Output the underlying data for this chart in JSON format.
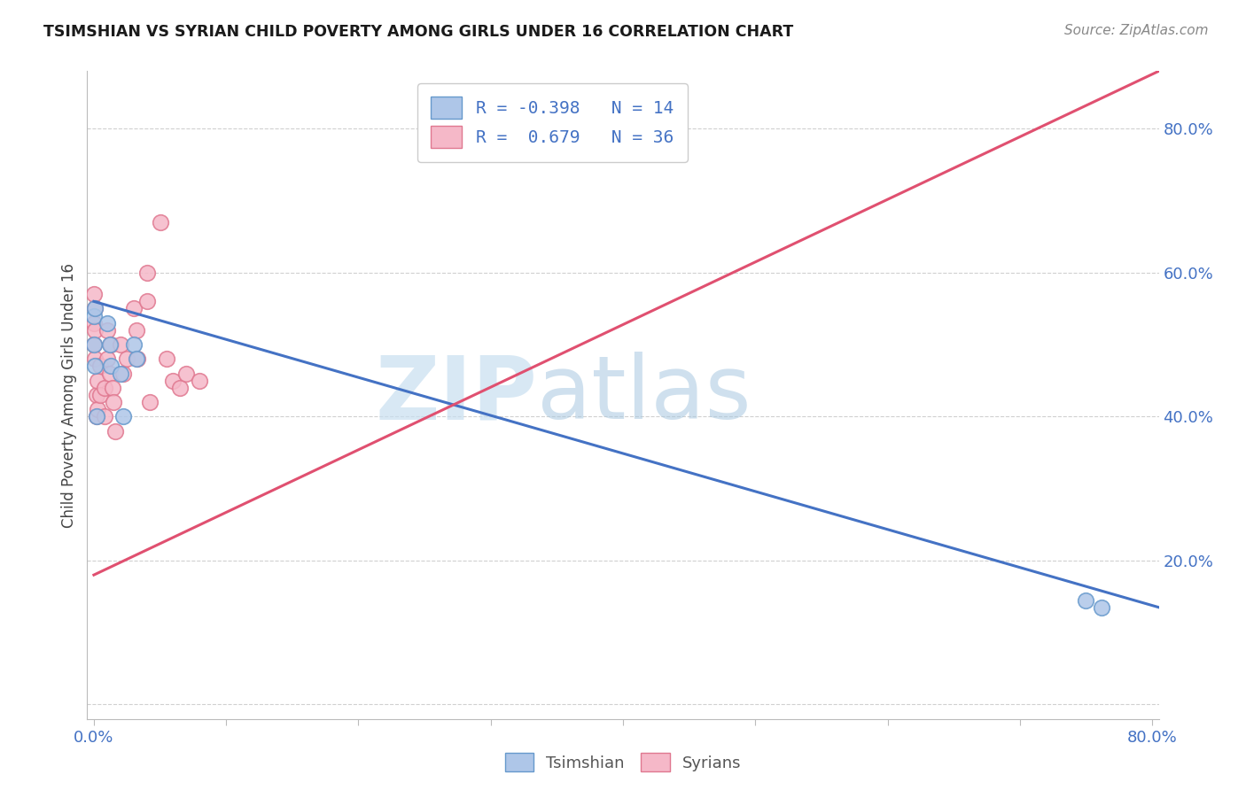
{
  "title": "TSIMSHIAN VS SYRIAN CHILD POVERTY AMONG GIRLS UNDER 16 CORRELATION CHART",
  "source": "Source: ZipAtlas.com",
  "ylabel": "Child Poverty Among Girls Under 16",
  "xlim": [
    -0.005,
    0.805
  ],
  "ylim": [
    -0.02,
    0.88
  ],
  "xticks": [
    0.0,
    0.1,
    0.2,
    0.3,
    0.4,
    0.5,
    0.6,
    0.7,
    0.8
  ],
  "xticklabels": [
    "0.0%",
    "",
    "",
    "",
    "",
    "",
    "",
    "",
    "80.0%"
  ],
  "yticks": [
    0.0,
    0.2,
    0.4,
    0.6,
    0.8
  ],
  "yticklabels": [
    "",
    "20.0%",
    "40.0%",
    "60.0%",
    "80.0%"
  ],
  "background_color": "#ffffff",
  "grid_color": "#d0d0d0",
  "tsimshian_color": "#aec6e8",
  "tsimshian_edge_color": "#6699cc",
  "syrians_color": "#f5b8c8",
  "syrians_edge_color": "#e07890",
  "tsimshian_line_color": "#4472c4",
  "syrians_line_color": "#e05070",
  "legend_tsimshian_label": "Tsimshian",
  "legend_syrians_label": "Syrians",
  "R_tsimshian": -0.398,
  "N_tsimshian": 14,
  "R_syrians": 0.679,
  "N_syrians": 36,
  "watermark_zip": "ZIP",
  "watermark_atlas": "atlas",
  "tsimshian_x": [
    0.0,
    0.0,
    0.001,
    0.001,
    0.002,
    0.01,
    0.012,
    0.013,
    0.02,
    0.022,
    0.03,
    0.032,
    0.75,
    0.762
  ],
  "tsimshian_y": [
    0.54,
    0.5,
    0.55,
    0.47,
    0.4,
    0.53,
    0.5,
    0.47,
    0.46,
    0.4,
    0.5,
    0.48,
    0.145,
    0.135
  ],
  "syrians_x": [
    0.0,
    0.0,
    0.0,
    0.001,
    0.001,
    0.001,
    0.002,
    0.002,
    0.003,
    0.003,
    0.005,
    0.005,
    0.008,
    0.008,
    0.01,
    0.01,
    0.012,
    0.013,
    0.014,
    0.015,
    0.016,
    0.02,
    0.022,
    0.025,
    0.03,
    0.032,
    0.033,
    0.04,
    0.04,
    0.042,
    0.05,
    0.055,
    0.06,
    0.065,
    0.07,
    0.08
  ],
  "syrians_y": [
    0.57,
    0.53,
    0.5,
    0.55,
    0.52,
    0.48,
    0.43,
    0.4,
    0.45,
    0.41,
    0.47,
    0.43,
    0.44,
    0.4,
    0.52,
    0.48,
    0.46,
    0.5,
    0.44,
    0.42,
    0.38,
    0.5,
    0.46,
    0.48,
    0.55,
    0.52,
    0.48,
    0.6,
    0.56,
    0.42,
    0.67,
    0.48,
    0.45,
    0.44,
    0.46,
    0.45
  ],
  "tsimshian_trendline_x": [
    0.0,
    0.805
  ],
  "tsimshian_trendline_y": [
    0.56,
    0.135
  ],
  "syrians_trendline_x": [
    0.0,
    0.805
  ],
  "syrians_trendline_y": [
    0.18,
    0.88
  ]
}
